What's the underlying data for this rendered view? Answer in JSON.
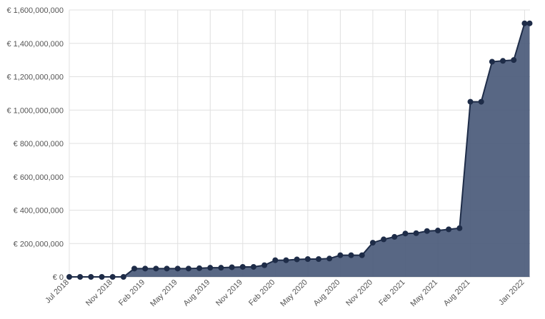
{
  "chart_data": {
    "type": "area",
    "title": "",
    "xlabel": "",
    "ylabel": "",
    "ylim": [
      0,
      1600000000
    ],
    "y_ticks": [
      0,
      200000000,
      400000000,
      600000000,
      800000000,
      1000000000,
      1200000000,
      1400000000,
      1600000000
    ],
    "y_tick_labels": [
      "€ 0",
      "€ 200,000,000",
      "€ 400,000,000",
      "€ 600,000,000",
      "€ 800,000,000",
      "€ 1,000,000,000",
      "€ 1,200,000,000",
      "€ 1,400,000,000",
      "€ 1,600,000,000"
    ],
    "x_range": [
      "2018-07",
      "2022-01"
    ],
    "x_tick_dates": [
      "2018-07",
      "2018-11",
      "2019-02",
      "2019-05",
      "2019-08",
      "2019-11",
      "2020-02",
      "2020-05",
      "2020-08",
      "2020-11",
      "2021-02",
      "2021-05",
      "2021-08",
      "2022-01"
    ],
    "x_tick_labels": [
      "Jul 2018",
      "Nov 2018",
      "Feb 2019",
      "May 2019",
      "Aug 2019",
      "Nov 2019",
      "Feb 2020",
      "May 2020",
      "Aug 2020",
      "Nov 2020",
      "Feb 2021",
      "May 2021",
      "Aug 2021",
      "Jan 2022"
    ],
    "grid": true,
    "colors": {
      "fill": "#4a5a7a",
      "line": "#1e2c48",
      "point": "#1e2c48",
      "grid": "#e0e0e0",
      "axis_text": "#555555"
    },
    "series": [
      {
        "x": [
          "2018-07",
          "2018-08",
          "2018-09",
          "2018-10",
          "2018-11",
          "2018-12",
          "2019-01",
          "2019-02",
          "2019-03",
          "2019-04",
          "2019-05",
          "2019-06",
          "2019-07",
          "2019-08",
          "2019-09",
          "2019-10",
          "2019-11",
          "2019-12",
          "2020-01",
          "2020-02",
          "2020-03",
          "2020-04",
          "2020-05",
          "2020-06",
          "2020-07",
          "2020-08",
          "2020-09",
          "2020-10",
          "2020-11",
          "2020-12",
          "2021-01",
          "2021-02",
          "2021-03",
          "2021-04",
          "2021-05",
          "2021-06",
          "2021-07",
          "2021-08",
          "2021-09",
          "2021-10",
          "2021-11",
          "2021-12",
          "2022-01"
        ],
        "values": [
          0,
          0,
          0,
          0,
          0,
          0,
          50000000,
          50000000,
          50000000,
          50000000,
          50000000,
          50000000,
          52000000,
          55000000,
          55000000,
          58000000,
          60000000,
          60000000,
          70000000,
          100000000,
          100000000,
          105000000,
          107000000,
          107000000,
          110000000,
          130000000,
          130000000,
          130000000,
          205000000,
          225000000,
          240000000,
          260000000,
          262000000,
          275000000,
          278000000,
          285000000,
          292000000,
          1050000000,
          1050000000,
          1290000000,
          1295000000,
          1300000000,
          1520000000
        ],
        "extra_point": {
          "x": "2022-01-15",
          "value": 1520000000
        }
      }
    ]
  }
}
